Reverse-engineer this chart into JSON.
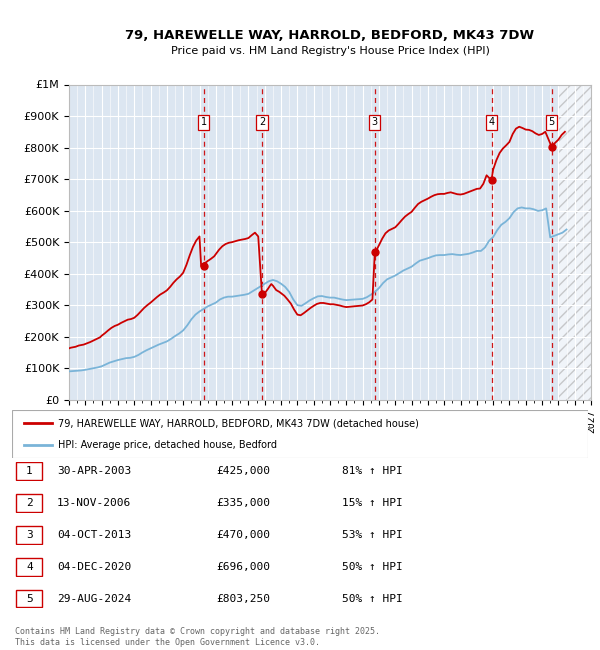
{
  "title_line1": "79, HAREWELLE WAY, HARROLD, BEDFORD, MK43 7DW",
  "title_line2": "Price paid vs. HM Land Registry's House Price Index (HPI)",
  "background_color": "#ffffff",
  "chart_bg_color": "#dce6f1",
  "hpi_line_color": "#7ab4d8",
  "price_line_color": "#cc0000",
  "vline_color": "#cc0000",
  "sale_marker_color": "#cc0000",
  "hpi_data": [
    [
      1995.0,
      90000
    ],
    [
      1995.25,
      91000
    ],
    [
      1995.5,
      92000
    ],
    [
      1995.75,
      93000
    ],
    [
      1996.0,
      95000
    ],
    [
      1996.25,
      97500
    ],
    [
      1996.5,
      100000
    ],
    [
      1996.75,
      102500
    ],
    [
      1997.0,
      106000
    ],
    [
      1997.25,
      112000
    ],
    [
      1997.5,
      118000
    ],
    [
      1997.75,
      122000
    ],
    [
      1998.0,
      126000
    ],
    [
      1998.25,
      129000
    ],
    [
      1998.5,
      132000
    ],
    [
      1998.75,
      133000
    ],
    [
      1999.0,
      136000
    ],
    [
      1999.25,
      142000
    ],
    [
      1999.5,
      150000
    ],
    [
      1999.75,
      157000
    ],
    [
      2000.0,
      163000
    ],
    [
      2000.25,
      169000
    ],
    [
      2000.5,
      175000
    ],
    [
      2000.75,
      180000
    ],
    [
      2001.0,
      185000
    ],
    [
      2001.25,
      193000
    ],
    [
      2001.5,
      202000
    ],
    [
      2001.75,
      210000
    ],
    [
      2002.0,
      220000
    ],
    [
      2002.25,
      236000
    ],
    [
      2002.5,
      255000
    ],
    [
      2002.75,
      270000
    ],
    [
      2003.0,
      280000
    ],
    [
      2003.25,
      288000
    ],
    [
      2003.5,
      296000
    ],
    [
      2003.75,
      302000
    ],
    [
      2004.0,
      308000
    ],
    [
      2004.25,
      318000
    ],
    [
      2004.5,
      324000
    ],
    [
      2004.75,
      327000
    ],
    [
      2005.0,
      327000
    ],
    [
      2005.25,
      329000
    ],
    [
      2005.5,
      331000
    ],
    [
      2005.75,
      333000
    ],
    [
      2006.0,
      336000
    ],
    [
      2006.25,
      344000
    ],
    [
      2006.5,
      352000
    ],
    [
      2006.75,
      360000
    ],
    [
      2007.0,
      368000
    ],
    [
      2007.25,
      376000
    ],
    [
      2007.5,
      380000
    ],
    [
      2007.75,
      376000
    ],
    [
      2008.0,
      368000
    ],
    [
      2008.25,
      358000
    ],
    [
      2008.5,
      342000
    ],
    [
      2008.75,
      318000
    ],
    [
      2009.0,
      300000
    ],
    [
      2009.25,
      298000
    ],
    [
      2009.5,
      306000
    ],
    [
      2009.75,
      315000
    ],
    [
      2010.0,
      322000
    ],
    [
      2010.25,
      328000
    ],
    [
      2010.5,
      329000
    ],
    [
      2010.75,
      326000
    ],
    [
      2011.0,
      324000
    ],
    [
      2011.25,
      324000
    ],
    [
      2011.5,
      321000
    ],
    [
      2011.75,
      318000
    ],
    [
      2012.0,
      316000
    ],
    [
      2012.25,
      317000
    ],
    [
      2012.5,
      318000
    ],
    [
      2012.75,
      319000
    ],
    [
      2013.0,
      320000
    ],
    [
      2013.25,
      325000
    ],
    [
      2013.5,
      333000
    ],
    [
      2013.75,
      342000
    ],
    [
      2014.0,
      354000
    ],
    [
      2014.25,
      370000
    ],
    [
      2014.5,
      382000
    ],
    [
      2014.75,
      388000
    ],
    [
      2015.0,
      394000
    ],
    [
      2015.25,
      402000
    ],
    [
      2015.5,
      410000
    ],
    [
      2015.75,
      416000
    ],
    [
      2016.0,
      422000
    ],
    [
      2016.25,
      432000
    ],
    [
      2016.5,
      441000
    ],
    [
      2016.75,
      445000
    ],
    [
      2017.0,
      449000
    ],
    [
      2017.25,
      454000
    ],
    [
      2017.5,
      458000
    ],
    [
      2017.75,
      459000
    ],
    [
      2018.0,
      459000
    ],
    [
      2018.25,
      461000
    ],
    [
      2018.5,
      462000
    ],
    [
      2018.75,
      460000
    ],
    [
      2019.0,
      459000
    ],
    [
      2019.25,
      461000
    ],
    [
      2019.5,
      463000
    ],
    [
      2019.75,
      467000
    ],
    [
      2020.0,
      472000
    ],
    [
      2020.25,
      472000
    ],
    [
      2020.5,
      483000
    ],
    [
      2020.75,
      504000
    ],
    [
      2021.0,
      516000
    ],
    [
      2021.25,
      538000
    ],
    [
      2021.5,
      555000
    ],
    [
      2021.75,
      564000
    ],
    [
      2022.0,
      576000
    ],
    [
      2022.25,
      595000
    ],
    [
      2022.5,
      607000
    ],
    [
      2022.75,
      610000
    ],
    [
      2023.0,
      607000
    ],
    [
      2023.25,
      607000
    ],
    [
      2023.5,
      604000
    ],
    [
      2023.75,
      599000
    ],
    [
      2024.0,
      601000
    ],
    [
      2024.25,
      607000
    ],
    [
      2024.5,
      515000
    ],
    [
      2024.75,
      520000
    ],
    [
      2025.0,
      525000
    ],
    [
      2025.25,
      530000
    ],
    [
      2025.5,
      540000
    ]
  ],
  "house_price_data": [
    [
      1995.0,
      163000
    ],
    [
      1995.1,
      165000
    ],
    [
      1995.2,
      166000
    ],
    [
      1995.3,
      167000
    ],
    [
      1995.4,
      168000
    ],
    [
      1995.5,
      170000
    ],
    [
      1995.6,
      172000
    ],
    [
      1995.7,
      173000
    ],
    [
      1995.8,
      174000
    ],
    [
      1995.9,
      175000
    ],
    [
      1996.0,
      177000
    ],
    [
      1996.1,
      179000
    ],
    [
      1996.2,
      181000
    ],
    [
      1996.3,
      183000
    ],
    [
      1996.5,
      188000
    ],
    [
      1996.7,
      193000
    ],
    [
      1996.9,
      198000
    ],
    [
      1997.0,
      203000
    ],
    [
      1997.2,
      211000
    ],
    [
      1997.4,
      220000
    ],
    [
      1997.6,
      228000
    ],
    [
      1997.8,
      234000
    ],
    [
      1998.0,
      238000
    ],
    [
      1998.2,
      244000
    ],
    [
      1998.4,
      249000
    ],
    [
      1998.6,
      254000
    ],
    [
      1998.8,
      256000
    ],
    [
      1999.0,
      260000
    ],
    [
      1999.2,
      269000
    ],
    [
      1999.4,
      280000
    ],
    [
      1999.6,
      291000
    ],
    [
      1999.8,
      300000
    ],
    [
      2000.0,
      308000
    ],
    [
      2000.2,
      317000
    ],
    [
      2000.4,
      326000
    ],
    [
      2000.6,
      334000
    ],
    [
      2000.8,
      340000
    ],
    [
      2001.0,
      347000
    ],
    [
      2001.2,
      358000
    ],
    [
      2001.4,
      371000
    ],
    [
      2001.6,
      382000
    ],
    [
      2001.8,
      391000
    ],
    [
      2002.0,
      403000
    ],
    [
      2002.2,
      428000
    ],
    [
      2002.4,
      458000
    ],
    [
      2002.6,
      485000
    ],
    [
      2002.8,
      505000
    ],
    [
      2003.0,
      518000
    ],
    [
      2003.1,
      424000
    ],
    [
      2003.2,
      430000
    ],
    [
      2003.3,
      434000
    ],
    [
      2003.4,
      436000
    ],
    [
      2003.5,
      440000
    ],
    [
      2003.7,
      447000
    ],
    [
      2003.9,
      455000
    ],
    [
      2004.0,
      462000
    ],
    [
      2004.2,
      476000
    ],
    [
      2004.4,
      487000
    ],
    [
      2004.6,
      494000
    ],
    [
      2004.8,
      498000
    ],
    [
      2005.0,
      500000
    ],
    [
      2005.2,
      503000
    ],
    [
      2005.4,
      506000
    ],
    [
      2005.6,
      508000
    ],
    [
      2005.8,
      510000
    ],
    [
      2006.0,
      513000
    ],
    [
      2006.2,
      522000
    ],
    [
      2006.4,
      530000
    ],
    [
      2006.6,
      518000
    ],
    [
      2006.83,
      335000
    ],
    [
      2007.0,
      338000
    ],
    [
      2007.1,
      345000
    ],
    [
      2007.2,
      352000
    ],
    [
      2007.3,
      360000
    ],
    [
      2007.4,
      367000
    ],
    [
      2007.5,
      362000
    ],
    [
      2007.6,
      355000
    ],
    [
      2007.7,
      348000
    ],
    [
      2007.8,
      345000
    ],
    [
      2007.9,
      342000
    ],
    [
      2008.0,
      338000
    ],
    [
      2008.2,
      330000
    ],
    [
      2008.4,
      318000
    ],
    [
      2008.6,
      305000
    ],
    [
      2008.8,
      286000
    ],
    [
      2009.0,
      270000
    ],
    [
      2009.2,
      268000
    ],
    [
      2009.4,
      275000
    ],
    [
      2009.6,
      283000
    ],
    [
      2009.8,
      291000
    ],
    [
      2010.0,
      298000
    ],
    [
      2010.2,
      304000
    ],
    [
      2010.4,
      307000
    ],
    [
      2010.6,
      307000
    ],
    [
      2010.8,
      305000
    ],
    [
      2011.0,
      303000
    ],
    [
      2011.2,
      303000
    ],
    [
      2011.4,
      301000
    ],
    [
      2011.6,
      299000
    ],
    [
      2011.8,
      296000
    ],
    [
      2012.0,
      294000
    ],
    [
      2012.2,
      295000
    ],
    [
      2012.4,
      296000
    ],
    [
      2012.6,
      297000
    ],
    [
      2012.8,
      298000
    ],
    [
      2013.0,
      299000
    ],
    [
      2013.2,
      303000
    ],
    [
      2013.4,
      309000
    ],
    [
      2013.6,
      318000
    ],
    [
      2013.75,
      470000
    ],
    [
      2013.8,
      473000
    ],
    [
      2013.9,
      480000
    ],
    [
      2014.0,
      490000
    ],
    [
      2014.2,
      511000
    ],
    [
      2014.4,
      528000
    ],
    [
      2014.6,
      537000
    ],
    [
      2014.8,
      542000
    ],
    [
      2015.0,
      547000
    ],
    [
      2015.2,
      558000
    ],
    [
      2015.4,
      570000
    ],
    [
      2015.6,
      581000
    ],
    [
      2015.8,
      589000
    ],
    [
      2016.0,
      596000
    ],
    [
      2016.2,
      609000
    ],
    [
      2016.4,
      621000
    ],
    [
      2016.6,
      628000
    ],
    [
      2016.8,
      633000
    ],
    [
      2017.0,
      638000
    ],
    [
      2017.2,
      644000
    ],
    [
      2017.4,
      649000
    ],
    [
      2017.6,
      652000
    ],
    [
      2017.8,
      653000
    ],
    [
      2018.0,
      653000
    ],
    [
      2018.2,
      656000
    ],
    [
      2018.4,
      658000
    ],
    [
      2018.6,
      655000
    ],
    [
      2018.8,
      652000
    ],
    [
      2019.0,
      651000
    ],
    [
      2019.2,
      653000
    ],
    [
      2019.4,
      657000
    ],
    [
      2019.6,
      661000
    ],
    [
      2019.8,
      665000
    ],
    [
      2020.0,
      669000
    ],
    [
      2020.2,
      670000
    ],
    [
      2020.4,
      685000
    ],
    [
      2020.6,
      712000
    ],
    [
      2020.9,
      696000
    ],
    [
      2021.0,
      730000
    ],
    [
      2021.2,
      760000
    ],
    [
      2021.4,
      783000
    ],
    [
      2021.6,
      797000
    ],
    [
      2021.8,
      807000
    ],
    [
      2022.0,
      818000
    ],
    [
      2022.2,
      843000
    ],
    [
      2022.4,
      860000
    ],
    [
      2022.6,
      866000
    ],
    [
      2022.8,
      862000
    ],
    [
      2023.0,
      857000
    ],
    [
      2023.2,
      856000
    ],
    [
      2023.4,
      852000
    ],
    [
      2023.6,
      845000
    ],
    [
      2023.8,
      840000
    ],
    [
      2024.0,
      843000
    ],
    [
      2024.2,
      850000
    ],
    [
      2024.58,
      803250
    ],
    [
      2024.7,
      810000
    ],
    [
      2024.9,
      820000
    ],
    [
      2025.0,
      825000
    ],
    [
      2025.2,
      840000
    ],
    [
      2025.4,
      850000
    ]
  ],
  "sales": [
    {
      "num": 1,
      "x": 2003.25,
      "price": 425000,
      "label": "30-APR-2003",
      "amount": "£425,000",
      "hpi_pct": "81%",
      "hpi_dir": "↑"
    },
    {
      "num": 2,
      "x": 2006.833,
      "price": 335000,
      "label": "13-NOV-2006",
      "amount": "£335,000",
      "hpi_pct": "15%",
      "hpi_dir": "↑"
    },
    {
      "num": 3,
      "x": 2013.75,
      "price": 470000,
      "label": "04-OCT-2013",
      "amount": "£470,000",
      "hpi_pct": "53%",
      "hpi_dir": "↑"
    },
    {
      "num": 4,
      "x": 2020.917,
      "price": 696000,
      "label": "04-DEC-2020",
      "amount": "£696,000",
      "hpi_pct": "50%",
      "hpi_dir": "↑"
    },
    {
      "num": 5,
      "x": 2024.583,
      "price": 803250,
      "label": "29-AUG-2024",
      "amount": "£803,250",
      "hpi_pct": "50%",
      "hpi_dir": "↑"
    }
  ],
  "yticks": [
    0,
    100000,
    200000,
    300000,
    400000,
    500000,
    600000,
    700000,
    800000,
    900000,
    1000000
  ],
  "ytick_labels": [
    "£0",
    "£100K",
    "£200K",
    "£300K",
    "£400K",
    "£500K",
    "£600K",
    "£700K",
    "£800K",
    "£900K",
    "£1M"
  ],
  "xmin": 1995.0,
  "xmax": 2027.0,
  "ymin": 0,
  "ymax": 1000000,
  "legend_price_label": "79, HAREWELLE WAY, HARROLD, BEDFORD, MK43 7DW (detached house)",
  "legend_hpi_label": "HPI: Average price, detached house, Bedford",
  "footnote": "Contains HM Land Registry data © Crown copyright and database right 2025.\nThis data is licensed under the Open Government Licence v3.0.",
  "future_xmin": 2025.0
}
